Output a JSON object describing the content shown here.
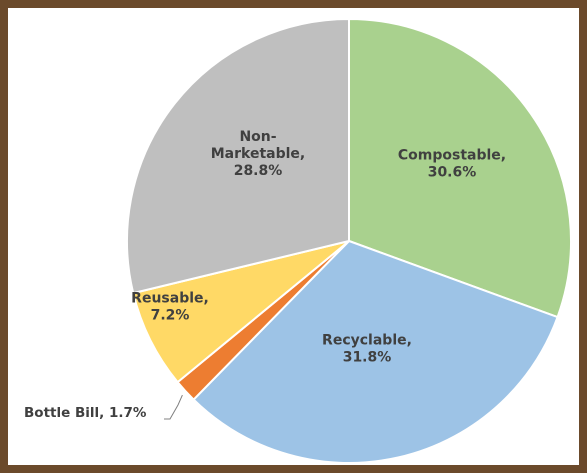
{
  "colors": {
    "frame": "#6b4a2b",
    "Compostable": "#a9d18e",
    "Recyclable": "#9dc3e6",
    "Bottle Bill": "#ed7d31",
    "Reusable": "#ffd966",
    "Non-Marketable": "#bfbfbf"
  },
  "chart_data": {
    "type": "pie",
    "slices": [
      {
        "label": "Compostable",
        "value": 30.6,
        "text": [
          "Compostable,",
          "30.6%"
        ]
      },
      {
        "label": "Recyclable",
        "value": 31.8,
        "text": [
          "Recyclable,",
          "31.8%"
        ]
      },
      {
        "label": "Bottle Bill",
        "value": 1.7,
        "text": [
          "Bottle Bill, 1.7%"
        ]
      },
      {
        "label": "Reusable",
        "value": 7.2,
        "text": [
          "Reusable,",
          "7.2%"
        ]
      },
      {
        "label": "Non-Marketable",
        "value": 28.8,
        "text": [
          "Non-",
          "Marketable,",
          "28.8%"
        ]
      }
    ],
    "start_angle_deg": 0,
    "direction": "clockwise"
  }
}
